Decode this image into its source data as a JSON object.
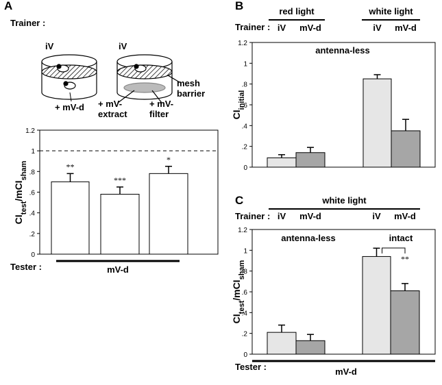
{
  "chart_data": [
    {
      "panel": "A",
      "type": "bar",
      "trainer_label": "Trainer :",
      "trainers": [
        "iV",
        "iV"
      ],
      "conditions": [
        [
          "+ mV-d"
        ],
        [
          "+ mV-",
          "extract"
        ],
        [
          "+ mV-",
          "filter"
        ]
      ],
      "barrier_label": [
        "mesh",
        "barrier"
      ],
      "ylabel": [
        "CI",
        "test",
        "/mCI",
        "sham"
      ],
      "ylim": [
        0,
        1.2
      ],
      "yticks": [
        0,
        {
          "value": 0.2,
          "label": ".2"
        },
        {
          "value": 0.4,
          "label": ".4"
        },
        {
          "value": 0.6,
          "label": ".6"
        },
        {
          "value": 0.8,
          "label": ".8"
        },
        1,
        {
          "value": 1.2,
          "label": "1.2"
        }
      ],
      "values": [
        0.7,
        0.58,
        0.78
      ],
      "errors": [
        0.08,
        0.07,
        0.07
      ],
      "significance": [
        "**",
        "***",
        "*"
      ],
      "colors": [
        "#ffffff",
        "#ffffff",
        "#ffffff"
      ],
      "reference_line": 1,
      "tester_label": "Tester :",
      "tester": "mV-d"
    },
    {
      "panel": "B",
      "type": "bar",
      "groups": [
        "red light",
        "white light"
      ],
      "trainer_label": "Trainer :",
      "categories": [
        "iV",
        "mV-d",
        "iV",
        "mV-d"
      ],
      "ylabel": [
        "CI",
        "initial"
      ],
      "ylim": [
        0,
        1.2
      ],
      "yticks": [
        0,
        {
          "value": 0.2,
          "label": ".2"
        },
        {
          "value": 0.4,
          "label": ".4"
        },
        {
          "value": 0.6,
          "label": ".6"
        },
        {
          "value": 0.8,
          "label": ".8"
        },
        1,
        {
          "value": 1.2,
          "label": "1.2"
        }
      ],
      "values": [
        0.09,
        0.14,
        0.85,
        0.35
      ],
      "errors": [
        0.03,
        0.05,
        0.04,
        0.11
      ],
      "colors": [
        "#e6e6e6",
        "#a6a6a6",
        "#e6e6e6",
        "#a6a6a6"
      ],
      "annotations": [
        "antenna-less"
      ]
    },
    {
      "panel": "C",
      "type": "bar",
      "groups": [
        "white light"
      ],
      "trainer_label": "Trainer :",
      "categories": [
        "iV",
        "mV-d",
        "iV",
        "mV-d"
      ],
      "ylabel": [
        "CI",
        "test",
        "/mCI",
        "sham"
      ],
      "ylim": [
        0,
        1.2
      ],
      "yticks": [
        0,
        {
          "value": 0.2,
          "label": ".2"
        },
        {
          "value": 0.4,
          "label": ".4"
        },
        {
          "value": 0.6,
          "label": ".6"
        },
        {
          "value": 0.8,
          "label": ".8"
        },
        1,
        {
          "value": 1.2,
          "label": "1.2"
        }
      ],
      "values": [
        0.21,
        0.13,
        0.94,
        0.61
      ],
      "errors": [
        0.07,
        0.06,
        0.08,
        0.07
      ],
      "colors": [
        "#e6e6e6",
        "#a6a6a6",
        "#e6e6e6",
        "#a6a6a6"
      ],
      "annotations": [
        "antenna-less",
        "intact"
      ],
      "significance_bracket": "**",
      "tester_label": "Tester :",
      "tester": "mV-d"
    }
  ]
}
